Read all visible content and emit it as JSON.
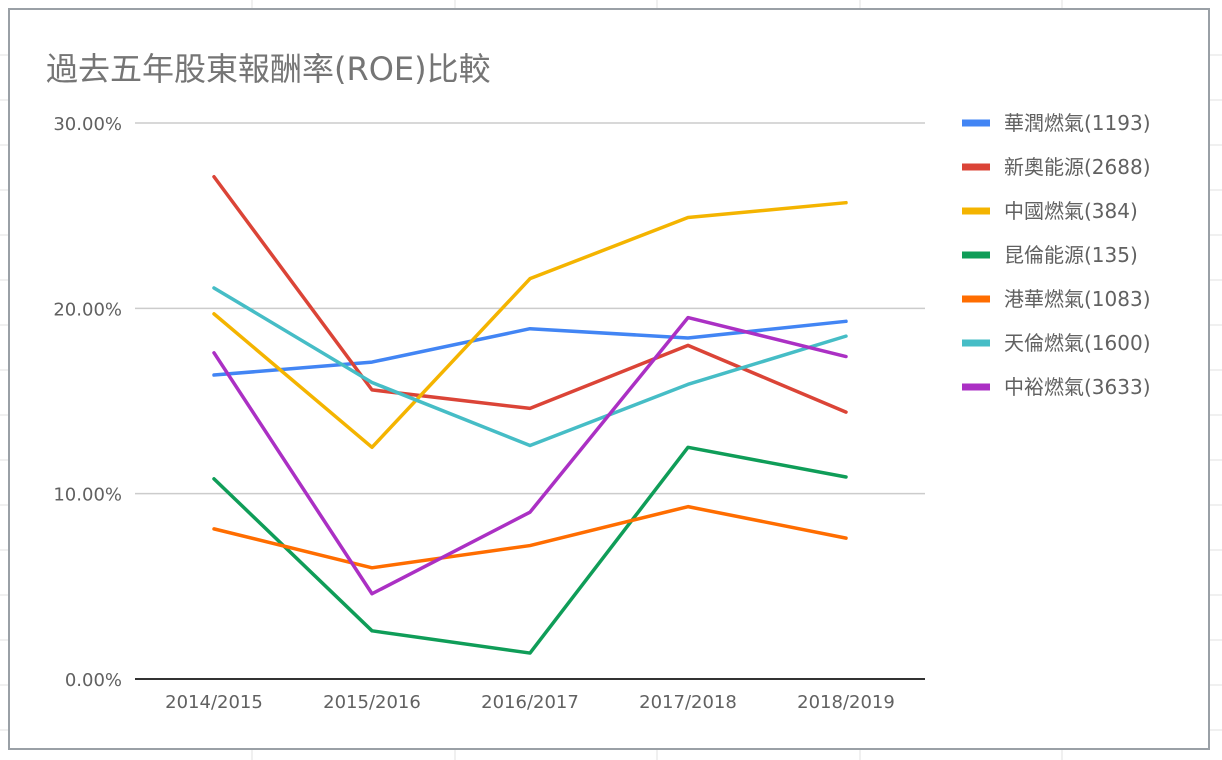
{
  "chart_data": {
    "type": "line",
    "title": "過去五年股東報酬率(ROE)比較",
    "xlabel": "",
    "ylabel": "",
    "categories": [
      "2014/2015",
      "2015/2016",
      "2016/2017",
      "2017/2018",
      "2018/2019"
    ],
    "ylim": [
      0,
      30
    ],
    "yticks": [
      0,
      10,
      20,
      30
    ],
    "ytick_labels": [
      "0.00%",
      "10.00%",
      "20.00%",
      "30.00%"
    ],
    "grid": true,
    "legend_position": "right",
    "series": [
      {
        "name": "華潤燃氣(1193)",
        "color": "#4285f4",
        "values": [
          16.4,
          17.1,
          18.9,
          18.4,
          19.3
        ]
      },
      {
        "name": "新奧能源(2688)",
        "color": "#db4437",
        "values": [
          27.1,
          15.6,
          14.6,
          18.0,
          14.4
        ]
      },
      {
        "name": "中國燃氣(384)",
        "color": "#f4b400",
        "values": [
          19.7,
          12.5,
          21.6,
          24.9,
          25.7
        ]
      },
      {
        "name": "昆倫能源(135)",
        "color": "#0f9d58",
        "values": [
          10.8,
          2.6,
          1.4,
          12.5,
          10.9
        ]
      },
      {
        "name": "港華燃氣(1083)",
        "color": "#ff6d00",
        "values": [
          8.1,
          6.0,
          7.2,
          9.3,
          7.6
        ]
      },
      {
        "name": "天倫燃氣(1600)",
        "color": "#46bdc6",
        "values": [
          21.1,
          16.0,
          12.6,
          15.9,
          18.5
        ]
      },
      {
        "name": "中裕燃氣(3633)",
        "color": "#ab30c4",
        "values": [
          17.6,
          4.6,
          9.0,
          19.5,
          17.4
        ]
      }
    ]
  }
}
